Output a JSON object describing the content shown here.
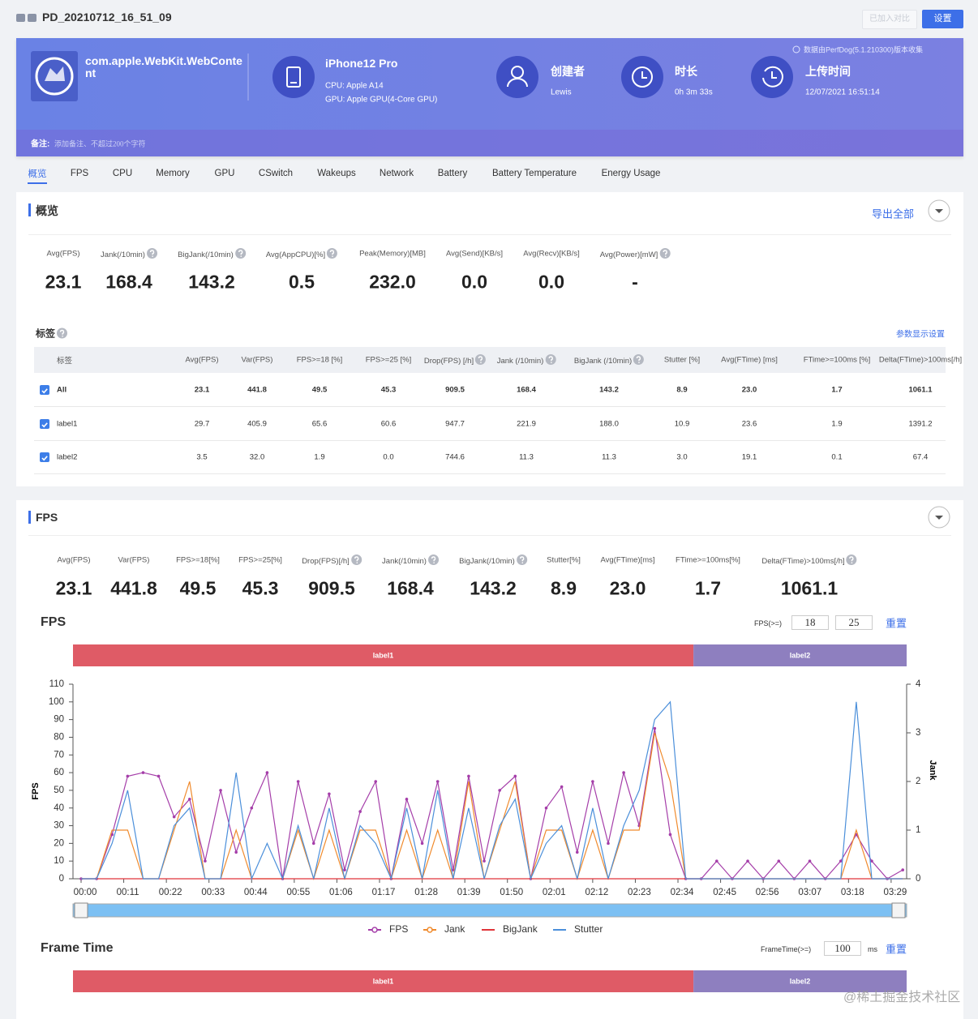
{
  "header": {
    "title": "PD_20210712_16_51_09",
    "compare_button": "已加入对比",
    "settings_button": "设置"
  },
  "banner": {
    "app": "com.apple.WebKit.WebContent",
    "device": "iPhone12 Pro",
    "cpu": "CPU: Apple A14",
    "gpu": "GPU: Apple GPU(4-Core GPU)",
    "creator_label": "创建者",
    "creator": "Lewis",
    "duration_label": "时长",
    "duration": "0h 3m 33s",
    "upload_label": "上传时间",
    "upload_time": "12/07/2021 16:51:14",
    "source_note": "数据由PerfDog(5.1.210300)版本收集",
    "remark_label": "备注:",
    "remark_placeholder": "添加备注、不超过200个字符"
  },
  "tabs": [
    "概览",
    "FPS",
    "CPU",
    "Memory",
    "GPU",
    "CSwitch",
    "Wakeups",
    "Network",
    "Battery",
    "Battery Temperature",
    "Energy Usage"
  ],
  "overview": {
    "title": "概览",
    "export": "导出全部",
    "metrics": [
      {
        "label": "Avg(FPS)",
        "value": "23.1",
        "help": false
      },
      {
        "label": "Jank(/10min)",
        "value": "168.4",
        "help": true
      },
      {
        "label": "BigJank(/10min)",
        "value": "143.2",
        "help": true
      },
      {
        "label": "Avg(AppCPU)[%]",
        "value": "0.5",
        "help": true
      },
      {
        "label": "Peak(Memory)[MB]",
        "value": "232.0",
        "help": false
      },
      {
        "label": "Avg(Send)[KB/s]",
        "value": "0.0",
        "help": false
      },
      {
        "label": "Avg(Recv)[KB/s]",
        "value": "0.0",
        "help": false
      },
      {
        "label": "Avg(Power)[mW]",
        "value": "-",
        "help": true
      }
    ]
  },
  "tags": {
    "title": "标签",
    "settings": "参数显示设置",
    "columns": [
      {
        "label": "标签",
        "help": false
      },
      {
        "label": "Avg(FPS)",
        "help": false
      },
      {
        "label": "Var(FPS)",
        "help": false
      },
      {
        "label": "FPS>=18 [%]",
        "help": false
      },
      {
        "label": "FPS>=25 [%]",
        "help": false
      },
      {
        "label": "Drop(FPS) [/h]",
        "help": true
      },
      {
        "label": "Jank (/10min)",
        "help": true
      },
      {
        "label": "BigJank (/10min)",
        "help": true
      },
      {
        "label": "Stutter [%]",
        "help": false
      },
      {
        "label": "Avg(FTime) [ms]",
        "help": false
      },
      {
        "label": "FTime>=100ms [%]",
        "help": false
      },
      {
        "label": "Delta(FTime)>100ms[/h]",
        "help": false
      }
    ],
    "rows": [
      [
        "All",
        "23.1",
        "441.8",
        "49.5",
        "45.3",
        "909.5",
        "168.4",
        "143.2",
        "8.9",
        "23.0",
        "1.7",
        "1061.1"
      ],
      [
        "label1",
        "29.7",
        "405.9",
        "65.6",
        "60.6",
        "947.7",
        "221.9",
        "188.0",
        "10.9",
        "23.6",
        "1.9",
        "1391.2"
      ],
      [
        "label2",
        "3.5",
        "32.0",
        "1.9",
        "0.0",
        "744.6",
        "11.3",
        "11.3",
        "3.0",
        "19.1",
        "0.1",
        "67.4"
      ]
    ]
  },
  "fps_section": {
    "title": "FPS",
    "metrics": [
      {
        "label": "Avg(FPS)",
        "value": "23.1",
        "help": false
      },
      {
        "label": "Var(FPS)",
        "value": "441.8",
        "help": false
      },
      {
        "label": "FPS>=18[%]",
        "value": "49.5",
        "help": false
      },
      {
        "label": "FPS>=25[%]",
        "value": "45.3",
        "help": false
      },
      {
        "label": "Drop(FPS)[/h]",
        "value": "909.5",
        "help": true
      },
      {
        "label": "Jank(/10min)",
        "value": "168.4",
        "help": true
      },
      {
        "label": "BigJank(/10min)",
        "value": "143.2",
        "help": true
      },
      {
        "label": "Stutter[%]",
        "value": "8.9",
        "help": false
      },
      {
        "label": "Avg(FTime)[ms]",
        "value": "23.0",
        "help": false
      },
      {
        "label": "FTime>=100ms[%]",
        "value": "1.7",
        "help": false
      },
      {
        "label": "Delta(FTime)>100ms[/h]",
        "value": "1061.1",
        "help": true
      }
    ]
  },
  "chart_data": {
    "type": "line",
    "title": "FPS",
    "threshold_label": "FPS(>=)",
    "thresholds": [
      18,
      25
    ],
    "reset": "重置",
    "y_label": "FPS",
    "y2_label": "Jank",
    "x": [
      0,
      4,
      8,
      12,
      16,
      20,
      24,
      28,
      32,
      36,
      40,
      44,
      48,
      52,
      56,
      60,
      64,
      68,
      72,
      76,
      80,
      84,
      88,
      92,
      96,
      100,
      104,
      108,
      112,
      116,
      120,
      124,
      128,
      132,
      136,
      140,
      144,
      148,
      152,
      156,
      160,
      164,
      168,
      172,
      176,
      180,
      184,
      188,
      192,
      196,
      200,
      204,
      208,
      212
    ],
    "xlim": [
      0,
      213
    ],
    "xticks": [
      {
        "value": 0,
        "label": "00:00"
      },
      {
        "value": 11,
        "label": "00:11"
      },
      {
        "value": 22,
        "label": "00:22"
      },
      {
        "value": 33,
        "label": "00:33"
      },
      {
        "value": 44,
        "label": "00:44"
      },
      {
        "value": 55,
        "label": "00:55"
      },
      {
        "value": 66,
        "label": "01:06"
      },
      {
        "value": 77,
        "label": "01:17"
      },
      {
        "value": 88,
        "label": "01:28"
      },
      {
        "value": 99,
        "label": "01:39"
      },
      {
        "value": 110,
        "label": "01:50"
      },
      {
        "value": 121,
        "label": "02:01"
      },
      {
        "value": 132,
        "label": "02:12"
      },
      {
        "value": 143,
        "label": "02:23"
      },
      {
        "value": 154,
        "label": "02:34"
      },
      {
        "value": 165,
        "label": "02:45"
      },
      {
        "value": 176,
        "label": "02:56"
      },
      {
        "value": 187,
        "label": "03:07"
      },
      {
        "value": 198,
        "label": "03:18"
      },
      {
        "value": 209,
        "label": "03:29"
      }
    ],
    "ylim": [
      0,
      110
    ],
    "yticks": [
      0,
      10,
      20,
      30,
      40,
      50,
      60,
      70,
      80,
      90,
      100,
      110
    ],
    "y2lim": [
      0,
      4
    ],
    "y2ticks": [
      0,
      1,
      2,
      3,
      4
    ],
    "series": [
      {
        "name": "FPS",
        "color": "#a53ea9",
        "values": [
          0,
          0,
          25,
          58,
          60,
          58,
          35,
          45,
          10,
          50,
          15,
          40,
          60,
          0,
          55,
          20,
          48,
          5,
          38,
          55,
          0,
          45,
          20,
          55,
          5,
          58,
          10,
          50,
          58,
          0,
          40,
          52,
          15,
          55,
          20,
          60,
          30,
          85,
          25,
          0,
          0,
          10,
          0,
          10,
          0,
          10,
          0,
          10,
          0,
          10,
          25,
          10,
          0,
          5
        ]
      },
      {
        "name": "Jank",
        "color": "#f08a2c",
        "axis": "y2",
        "values": [
          0,
          0,
          1,
          1,
          0,
          0,
          1,
          2,
          0,
          0,
          1,
          0,
          0,
          0,
          1,
          0,
          1,
          0,
          1,
          1,
          0,
          1,
          0,
          1,
          0,
          2,
          0,
          1,
          2,
          0,
          1,
          1,
          0,
          1,
          0,
          1,
          1,
          3,
          2,
          0,
          0,
          0,
          0,
          0,
          0,
          0,
          0,
          0,
          0,
          0,
          1,
          0,
          0,
          0
        ]
      },
      {
        "name": "BigJank",
        "color": "#e0353a",
        "axis": "y2",
        "values": [
          0,
          0,
          0,
          0,
          0,
          0,
          0,
          0,
          0,
          0,
          0,
          0,
          0,
          0,
          0,
          0,
          0,
          0,
          0,
          0,
          0,
          0,
          0,
          0,
          0,
          0,
          0,
          0,
          0,
          0,
          0,
          0,
          0,
          0,
          0,
          0,
          0,
          0,
          0,
          0,
          0,
          0,
          0,
          0,
          0,
          0,
          0,
          0,
          0,
          0,
          0,
          0,
          0,
          0
        ]
      },
      {
        "name": "Stutter",
        "color": "#4b8fda",
        "values": [
          0,
          0,
          20,
          50,
          0,
          0,
          30,
          40,
          0,
          0,
          60,
          0,
          20,
          0,
          30,
          0,
          40,
          0,
          30,
          20,
          0,
          40,
          0,
          50,
          0,
          40,
          0,
          30,
          45,
          0,
          20,
          30,
          0,
          40,
          0,
          30,
          50,
          90,
          100,
          0,
          0,
          0,
          0,
          0,
          0,
          0,
          0,
          0,
          0,
          0,
          100,
          0,
          0,
          0
        ]
      }
    ],
    "segments": [
      {
        "name": "label1",
        "start": 0,
        "end": 158,
        "color": "#df5b66"
      },
      {
        "name": "label2",
        "start": 158,
        "end": 213,
        "color": "#8e7fbf"
      }
    ],
    "legend": "bottom"
  },
  "frame_time": {
    "title": "Frame Time",
    "threshold_label": "FrameTime(>=)",
    "threshold": 100,
    "unit": "ms",
    "reset": "重置",
    "segments": [
      {
        "name": "label1",
        "start": 0,
        "end": 158,
        "color": "#df5b66"
      },
      {
        "name": "label2",
        "start": 158,
        "end": 213,
        "color": "#8e7fbf"
      }
    ]
  },
  "watermark": "@稀土掘金技术社区"
}
